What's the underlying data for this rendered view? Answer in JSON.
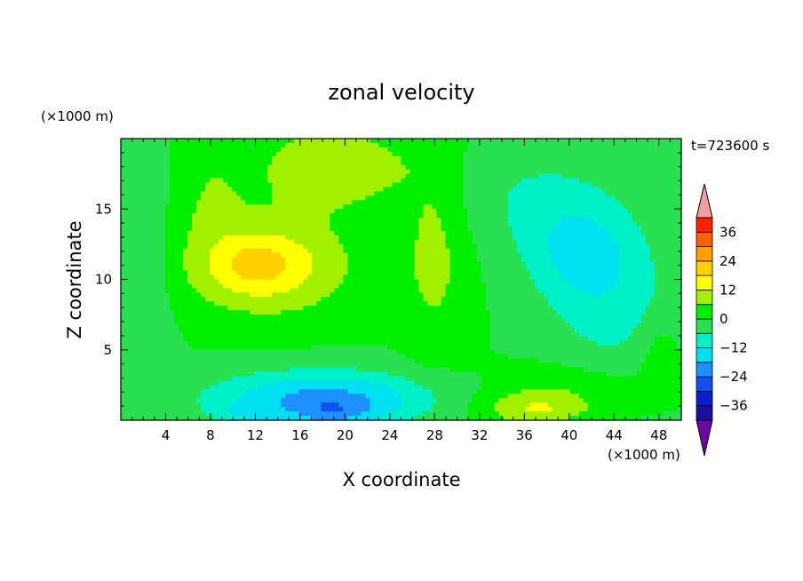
{
  "chart_data": {
    "type": "heatmap",
    "title": "zonal velocity",
    "xlabel": "X coordinate",
    "ylabel": "Z coordinate",
    "x_unit": "(×1000 m)",
    "y_unit": "(×1000 m)",
    "time_label": "t=723600 s",
    "xlim": [
      0,
      50
    ],
    "ylim": [
      0,
      20
    ],
    "x_ticks": [
      "4",
      "8",
      "12",
      "16",
      "20",
      "24",
      "28",
      "32",
      "36",
      "40",
      "44",
      "48"
    ],
    "y_ticks": [
      "5",
      "10",
      "15"
    ],
    "colorbar": {
      "labels": [
        "36",
        "24",
        "12",
        "0",
        "−12",
        "−24",
        "−36"
      ],
      "label_values": [
        36,
        24,
        12,
        0,
        -12,
        -24,
        -36
      ],
      "levels": [
        -42,
        -36,
        -30,
        -24,
        -18,
        -12,
        -6,
        0,
        6,
        12,
        18,
        24,
        30,
        36,
        42
      ],
      "colors": [
        "#6a0ba0",
        "#1a10a0",
        "#0a1ed0",
        "#1050f0",
        "#1e90ff",
        "#00e0f0",
        "#00f0c8",
        "#28e050",
        "#00f000",
        "#a0f000",
        "#ffff00",
        "#ffd000",
        "#ffa000",
        "#ff6000",
        "#ff2000",
        "#f0a0a0"
      ]
    },
    "field": {
      "background": 0,
      "blobs": [
        {
          "x": 2,
          "y": 10,
          "sx": 2.5,
          "sy": 8,
          "a": -6
        },
        {
          "x": 8,
          "y": 16,
          "sx": 3,
          "sy": 4,
          "a": 5
        },
        {
          "x": 13,
          "y": 11,
          "sx": 7.5,
          "sy": 3.5,
          "a": 15
        },
        {
          "x": 12,
          "y": 11,
          "sx": 3.5,
          "sy": 1.8,
          "a": 7
        },
        {
          "x": 19,
          "y": 18,
          "sx": 7,
          "sy": 3,
          "a": 11
        },
        {
          "x": 28,
          "y": 12,
          "sx": 3,
          "sy": 7,
          "a": 8
        },
        {
          "x": 18,
          "y": 1.5,
          "sx": 10,
          "sy": 2,
          "a": -20
        },
        {
          "x": 19,
          "y": 0.5,
          "sx": 3.5,
          "sy": 0.9,
          "a": -8
        },
        {
          "x": 11,
          "y": 0.5,
          "sx": 2.5,
          "sy": 0.8,
          "a": -5
        },
        {
          "x": 37,
          "y": 0.8,
          "sx": 5,
          "sy": 1.2,
          "a": 12
        },
        {
          "x": 40,
          "y": 2.5,
          "sx": 7,
          "sy": 1.6,
          "a": 5
        },
        {
          "x": 41,
          "y": 12,
          "sx": 5,
          "sy": 3.5,
          "a": -11
        },
        {
          "x": 44,
          "y": 8,
          "sx": 6,
          "sy": 5,
          "a": -8
        },
        {
          "x": 37,
          "y": 16,
          "sx": 8,
          "sy": 4,
          "a": -6
        },
        {
          "x": 48,
          "y": 5,
          "sx": 2,
          "sy": 2.5,
          "a": 5
        }
      ]
    }
  }
}
